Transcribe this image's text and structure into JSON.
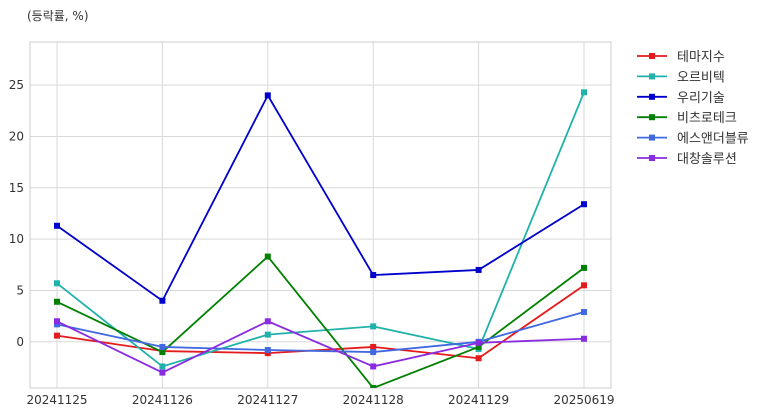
{
  "chart_data": {
    "type": "line",
    "unit_note": "(등락률, %)",
    "title": "",
    "xlabel": "",
    "ylabel": "",
    "x": [
      "20241125",
      "20241126",
      "20241127",
      "20241128",
      "20241129",
      "20250619"
    ],
    "ylim": [
      -4.5,
      29.2
    ],
    "yticks": [
      0,
      5,
      10,
      15,
      20,
      25
    ],
    "grid": true,
    "legend_position": "right-outside-top",
    "series": [
      {
        "name": "테마지수",
        "color": "#e41a1c",
        "values": [
          0.6,
          -0.9,
          -1.1,
          -0.5,
          -1.6,
          5.5
        ]
      },
      {
        "name": "오르비텍",
        "color": "#20b2aa",
        "values": [
          5.7,
          -2.4,
          0.7,
          1.5,
          -0.7,
          24.3
        ]
      },
      {
        "name": "우리기술",
        "color": "#0000cd",
        "values": [
          11.3,
          4.0,
          24.0,
          6.5,
          7.0,
          13.4
        ]
      },
      {
        "name": "비츠로테크",
        "color": "#008000",
        "values": [
          3.9,
          -1.0,
          8.3,
          -4.5,
          -0.5,
          7.2
        ]
      },
      {
        "name": "에스앤더블류",
        "color": "#4169e1",
        "values": [
          1.7,
          -0.5,
          -0.8,
          -1.0,
          0.0,
          2.9
        ]
      },
      {
        "name": "대창솔루션",
        "color": "#8a2be2",
        "values": [
          2.0,
          -3.0,
          2.0,
          -2.4,
          -0.1,
          0.3
        ]
      }
    ]
  }
}
